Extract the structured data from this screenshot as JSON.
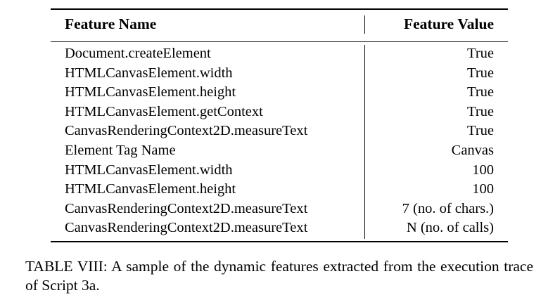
{
  "table": {
    "header": {
      "name": "Feature Name",
      "value": "Feature Value"
    },
    "rows": [
      {
        "name": "Document.createElement",
        "value": "True"
      },
      {
        "name": "HTMLCanvasElement.width",
        "value": "True"
      },
      {
        "name": "HTMLCanvasElement.height",
        "value": "True"
      },
      {
        "name": "HTMLCanvasElement.getContext",
        "value": "True"
      },
      {
        "name": "CanvasRenderingContext2D.measureText",
        "value": "True"
      },
      {
        "name": "Element Tag Name",
        "value": "Canvas"
      },
      {
        "name": "HTMLCanvasElement.width",
        "value": "100"
      },
      {
        "name": "HTMLCanvasElement.height",
        "value": "100"
      },
      {
        "name": "CanvasRenderingContext2D.measureText",
        "value": "7 (no. of chars.)"
      },
      {
        "name": "CanvasRenderingContext2D.measureText",
        "value": "N (no. of calls)"
      }
    ]
  },
  "caption": "TABLE VIII: A sample of the dynamic features extracted from the execution trace of Script 3a."
}
